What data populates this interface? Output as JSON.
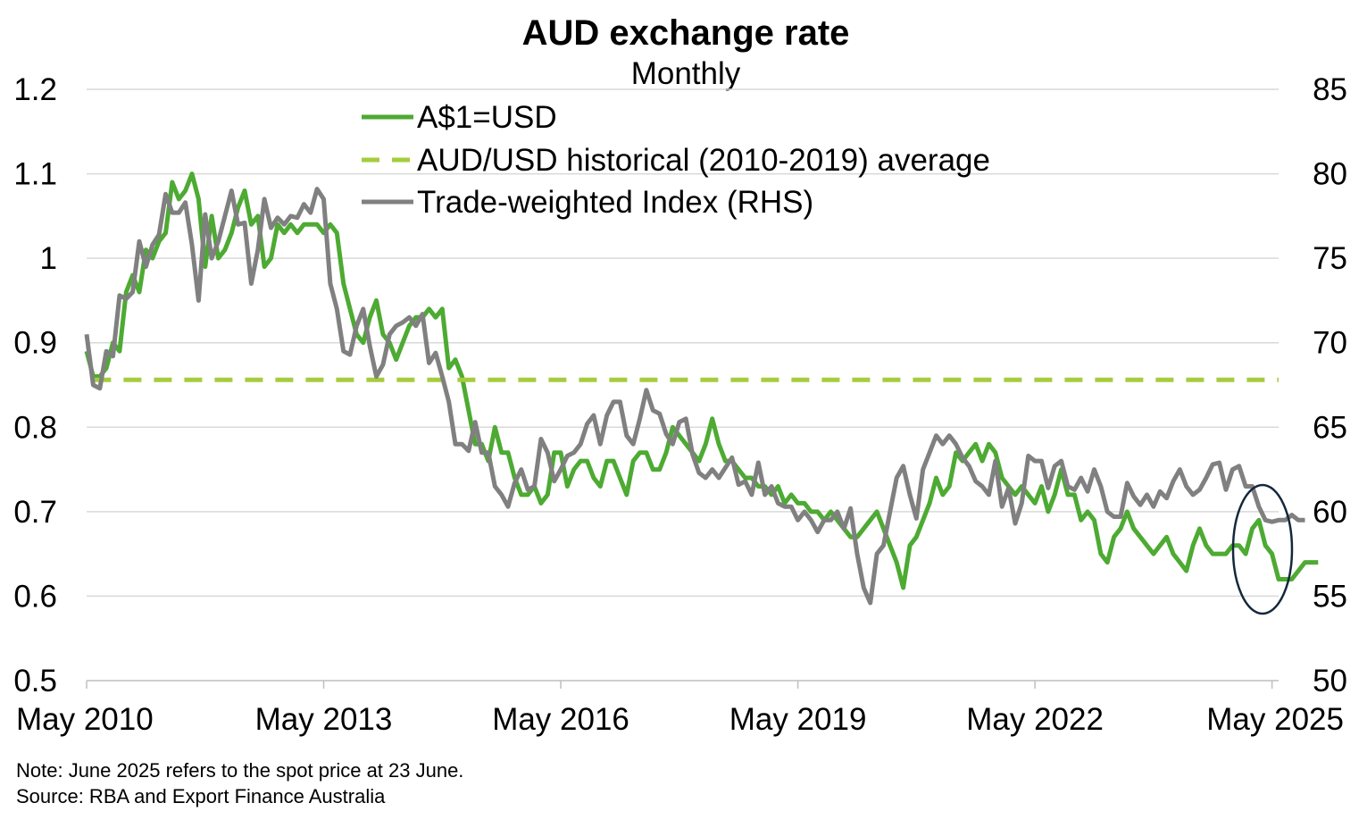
{
  "chart_data": {
    "type": "line",
    "title": "AUD exchange rate",
    "subtitle": "Monthly",
    "x_tick_labels": [
      "May 2010",
      "May 2013",
      "May 2016",
      "May 2019",
      "May 2022",
      "May 2025"
    ],
    "x_range": [
      "2010-05",
      "2025-06"
    ],
    "y_left": {
      "range": [
        0.5,
        1.2
      ],
      "ticks": [
        "0.5",
        "0.6",
        "0.7",
        "0.8",
        "0.9",
        "1",
        "1.1",
        "1.2"
      ]
    },
    "y_right": {
      "range": [
        50,
        85
      ],
      "ticks": [
        "50",
        "55",
        "60",
        "65",
        "70",
        "75",
        "80",
        "85"
      ]
    },
    "grid": "horizontal",
    "legend_position": "top-center",
    "colors": {
      "aud_usd": "#4daa32",
      "average": "#a6cc3d",
      "twi": "#808080",
      "highlight": "#14283c"
    },
    "series": [
      {
        "name": "A$1=USD",
        "axis": "left",
        "style": "solid",
        "values": [
          0.89,
          0.86,
          0.86,
          0.87,
          0.9,
          0.89,
          0.96,
          0.98,
          0.96,
          1.01,
          1.0,
          1.02,
          1.03,
          1.09,
          1.07,
          1.08,
          1.1,
          1.07,
          0.99,
          1.05,
          1.0,
          1.01,
          1.03,
          1.06,
          1.08,
          1.04,
          1.05,
          0.99,
          1.0,
          1.04,
          1.03,
          1.04,
          1.03,
          1.04,
          1.04,
          1.04,
          1.03,
          1.04,
          1.03,
          0.97,
          0.94,
          0.91,
          0.9,
          0.93,
          0.95,
          0.91,
          0.9,
          0.88,
          0.9,
          0.92,
          0.93,
          0.93,
          0.94,
          0.93,
          0.94,
          0.87,
          0.88,
          0.86,
          0.82,
          0.78,
          0.78,
          0.76,
          0.8,
          0.77,
          0.77,
          0.74,
          0.72,
          0.72,
          0.73,
          0.71,
          0.72,
          0.77,
          0.77,
          0.73,
          0.75,
          0.76,
          0.76,
          0.74,
          0.73,
          0.76,
          0.76,
          0.74,
          0.72,
          0.76,
          0.77,
          0.77,
          0.75,
          0.75,
          0.77,
          0.8,
          0.79,
          0.78,
          0.77,
          0.76,
          0.78,
          0.81,
          0.78,
          0.76,
          0.76,
          0.75,
          0.74,
          0.74,
          0.73,
          0.73,
          0.72,
          0.73,
          0.71,
          0.72,
          0.71,
          0.71,
          0.7,
          0.7,
          0.69,
          0.7,
          0.69,
          0.68,
          0.67,
          0.67,
          0.68,
          0.69,
          0.7,
          0.68,
          0.66,
          0.64,
          0.61,
          0.66,
          0.67,
          0.69,
          0.71,
          0.74,
          0.72,
          0.73,
          0.77,
          0.76,
          0.77,
          0.78,
          0.76,
          0.78,
          0.77,
          0.74,
          0.73,
          0.72,
          0.73,
          0.72,
          0.71,
          0.73,
          0.7,
          0.72,
          0.75,
          0.72,
          0.72,
          0.69,
          0.7,
          0.69,
          0.65,
          0.64,
          0.67,
          0.68,
          0.7,
          0.68,
          0.67,
          0.66,
          0.65,
          0.66,
          0.67,
          0.65,
          0.64,
          0.63,
          0.66,
          0.68,
          0.66,
          0.65,
          0.65,
          0.65,
          0.66,
          0.66,
          0.65,
          0.68,
          0.69,
          0.66,
          0.65,
          0.62,
          0.62,
          0.62,
          0.63,
          0.64,
          0.64,
          0.64
        ],
        "x_start": "2010-05",
        "x_step": "1 month"
      },
      {
        "name": "AUD/USD historical (2010-2019) average",
        "axis": "left",
        "style": "dashed",
        "values": [
          0.856,
          0.856
        ],
        "x": [
          "2010-06",
          "2025-06"
        ]
      },
      {
        "name": "Trade-weighted Index (RHS)",
        "axis": "right",
        "style": "solid",
        "values": [
          70.5,
          67.5,
          67.3,
          69.5,
          69.2,
          72.8,
          72.6,
          73.0,
          76.0,
          74.5,
          75.8,
          76.4,
          78.8,
          77.7,
          77.7,
          78.3,
          75.8,
          72.5,
          77.6,
          75.0,
          76.0,
          77.5,
          79.0,
          77.0,
          77.1,
          73.5,
          75.5,
          78.5,
          76.8,
          77.4,
          77.0,
          77.5,
          77.4,
          78.2,
          77.7,
          79.1,
          78.5,
          73.5,
          72.0,
          69.5,
          69.3,
          71.0,
          72.0,
          69.8,
          68.0,
          68.7,
          70.5,
          71.0,
          71.2,
          71.5,
          71.0,
          71.7,
          68.8,
          69.4,
          68.0,
          66.5,
          64.0,
          64.0,
          63.6,
          65.3,
          63.5,
          63.5,
          61.5,
          61.0,
          60.3,
          61.7,
          62.5,
          61.3,
          61.5,
          64.3,
          63.5,
          61.8,
          62.5,
          63.3,
          63.5,
          64.0,
          65.2,
          65.7,
          64.0,
          65.7,
          66.5,
          66.5,
          64.5,
          64.0,
          65.5,
          67.2,
          66.0,
          65.8,
          64.6,
          64.0,
          65.3,
          65.5,
          63.4,
          62.3,
          62.0,
          62.5,
          62.0,
          62.6,
          63.2,
          61.6,
          61.8,
          61.0,
          62.9,
          61.0,
          61.5,
          60.5,
          60.3,
          60.3,
          59.5,
          60.0,
          59.5,
          58.8,
          59.5,
          59.5,
          60.0,
          59.0,
          60.2,
          57.5,
          55.5,
          54.6,
          57.5,
          58.0,
          60.0,
          62.0,
          62.7,
          61.0,
          59.6,
          62.5,
          63.5,
          64.5,
          64.0,
          64.5,
          64.0,
          63.2,
          62.7,
          61.8,
          61.5,
          61.0,
          63.0,
          60.3,
          61.4,
          59.3,
          60.5,
          63.3,
          63.0,
          63.0,
          61.4,
          62.7,
          63.0,
          61.5,
          61.3,
          62.0,
          61.2,
          62.5,
          61.5,
          60.0,
          59.7,
          59.7,
          61.7,
          60.9,
          60.4,
          61.0,
          60.3,
          61.2,
          60.8,
          61.8,
          62.5,
          61.5,
          61.0,
          61.3,
          62.0,
          62.8,
          62.9,
          61.3,
          62.5,
          62.7,
          61.5,
          61.5,
          60.3,
          59.5,
          59.4,
          59.5,
          59.5,
          59.8,
          59.5,
          59.5
        ],
        "x_start": "2010-05",
        "x_step": "1 month"
      }
    ]
  },
  "footnotes": {
    "note": "Note: June 2025 refers to the spot price at 23 June.",
    "source": "Source: RBA and Export Finance Australia"
  }
}
